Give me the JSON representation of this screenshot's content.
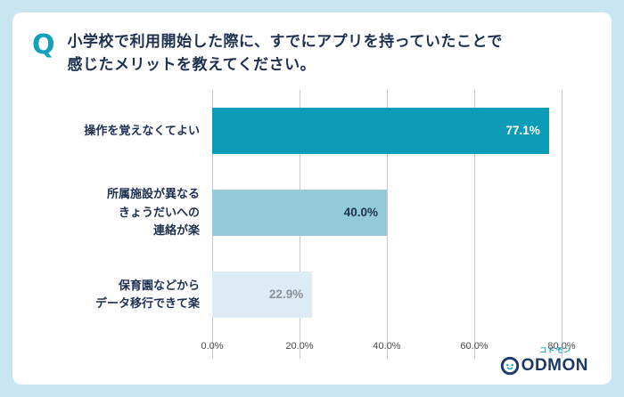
{
  "header": {
    "q_label": "Q",
    "title": "小学校で利用開始した際に、すでにアプリを持っていたことで\n感じたメリットを教えてください。"
  },
  "chart_data": {
    "type": "bar",
    "orientation": "horizontal",
    "title": "小学校で利用開始した際に、すでにアプリを持っていたことで感じたメリットを教えてください。",
    "categories": [
      "操作を覚えなくてよい",
      "所属施設が異なる\nきょうだいへの\n連絡が楽",
      "保育園などから\nデータ移行できて楽"
    ],
    "values": [
      77.1,
      40.0,
      22.9
    ],
    "value_labels": [
      "77.1%",
      "40.0%",
      "22.9%"
    ],
    "x_ticks": [
      "0.0%",
      "20.0%",
      "40.0%",
      "60.0%",
      "80.0%"
    ],
    "x_tick_values": [
      0,
      20,
      40,
      60,
      80
    ],
    "xlim": [
      0,
      80
    ],
    "grid": true,
    "legend": false,
    "bar_colors": [
      "#0d9cb7",
      "#92cad8",
      "#dcebf4"
    ],
    "value_label_colors": [
      "#ffffff",
      "#1e3050",
      "#8b929c"
    ]
  },
  "logo": {
    "katakana": "コドモン",
    "wordmark": "ODMON"
  }
}
